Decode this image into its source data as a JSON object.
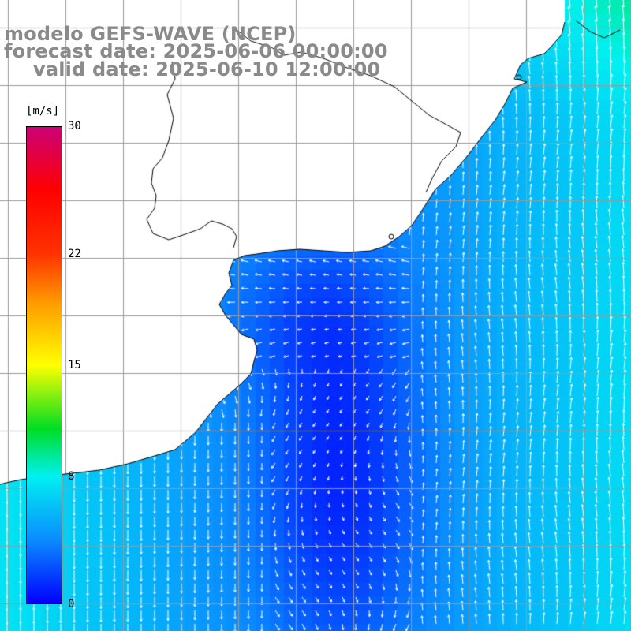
{
  "title": {
    "line1": "modelo GEFS-WAVE (NCEP)",
    "line2": "forecast date: 2025-06-06 00:00:00",
    "line3": "valid date: 2025-06-10 12:00:00"
  },
  "colorbar": {
    "unit": "[m/s]",
    "ticks": [
      {
        "value": 30,
        "label": "30"
      },
      {
        "value": 22,
        "label": "22"
      },
      {
        "value": 15,
        "label": "15"
      },
      {
        "value": 8,
        "label": "8"
      },
      {
        "value": 0,
        "label": "0"
      }
    ],
    "stops": [
      {
        "value": 0,
        "color": "#0000ff"
      },
      {
        "value": 4,
        "color": "#0a8cff"
      },
      {
        "value": 8,
        "color": "#00f0f0"
      },
      {
        "value": 11,
        "color": "#00dd22"
      },
      {
        "value": 15,
        "color": "#ffff00"
      },
      {
        "value": 19,
        "color": "#ff9900"
      },
      {
        "value": 22,
        "color": "#ff3300"
      },
      {
        "value": 26,
        "color": "#ff0000"
      },
      {
        "value": 30,
        "color": "#cc0077"
      }
    ]
  },
  "map": {
    "field": "wind speed and direction",
    "land_color": "#ffffff",
    "grid_color": "#999999",
    "coast_color": "#000000",
    "vector_color": "#ffffff"
  }
}
